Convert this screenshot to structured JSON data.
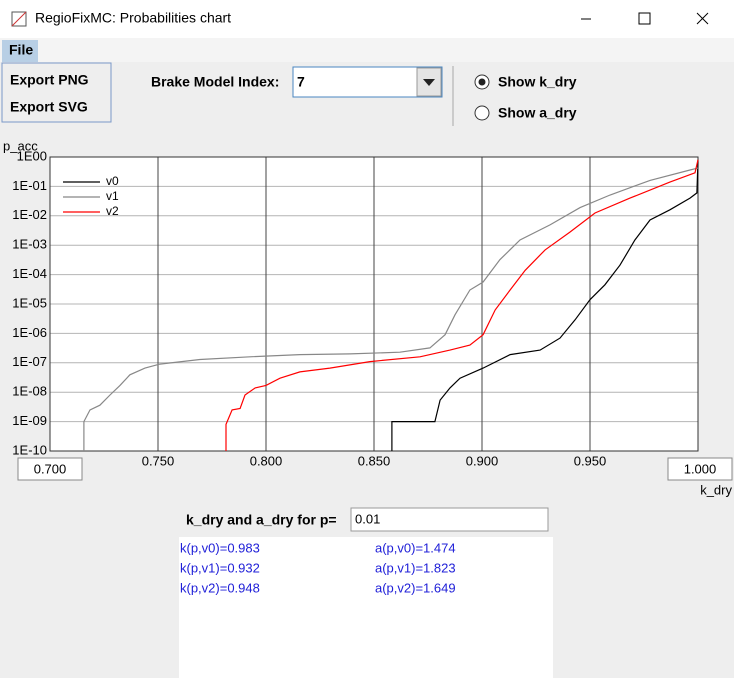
{
  "window": {
    "title": "RegioFixMC: Probabilities chart"
  },
  "menu": {
    "file": "File",
    "items": [
      "Export PNG",
      "Export SVG"
    ]
  },
  "controls": {
    "brake_label": "Brake Model Index:",
    "brake_value": "7",
    "radios": [
      {
        "label": "Show k_dry",
        "selected": true
      },
      {
        "label": "Show a_dry",
        "selected": false
      }
    ]
  },
  "chart_data": {
    "type": "line",
    "ylabel": "p_acc",
    "xlabel": "k_dry",
    "ylog": true,
    "grid": true,
    "legend": "upper left",
    "xlim": [
      0.7,
      1.0
    ],
    "xticks": [
      {
        "value": 0.7,
        "label": "0.700"
      },
      {
        "value": 0.75,
        "label": "0.750"
      },
      {
        "value": 0.8,
        "label": "0.800"
      },
      {
        "value": 0.85,
        "label": "0.850"
      },
      {
        "value": 0.9,
        "label": "0.900"
      },
      {
        "value": 0.95,
        "label": "0.950"
      },
      {
        "value": 1.0,
        "label": "1.000"
      }
    ],
    "ylim": [
      1e-10,
      1
    ],
    "yticks": [
      {
        "value": 1,
        "label": "1E00"
      },
      {
        "value": 0.1,
        "label": "1E-01"
      },
      {
        "value": 0.01,
        "label": "1E-02"
      },
      {
        "value": 0.001,
        "label": "1E-03"
      },
      {
        "value": 0.0001,
        "label": "1E-04"
      },
      {
        "value": 1e-05,
        "label": "1E-05"
      },
      {
        "value": 1e-06,
        "label": "1E-06"
      },
      {
        "value": 1e-07,
        "label": "1E-07"
      },
      {
        "value": 1e-08,
        "label": "1E-08"
      },
      {
        "value": 1e-09,
        "label": "1E-09"
      },
      {
        "value": 1e-10,
        "label": "1E-10"
      }
    ],
    "series": [
      {
        "name": "v0",
        "color": "#000000",
        "x": [
          0.8583,
          0.8583,
          0.8782,
          0.8806,
          0.8852,
          0.8898,
          0.9005,
          0.913,
          0.9269,
          0.9361,
          0.9431,
          0.95,
          0.9569,
          0.9639,
          0.9708,
          0.9778,
          0.987,
          0.9963,
          0.9995,
          1.0
        ],
        "values": [
          1e-10,
          1e-09,
          1e-09,
          5.4e-09,
          1.4e-08,
          3e-08,
          6.6e-08,
          1.9e-07,
          2.7e-07,
          6.9e-07,
          2.9e-06,
          1.4e-05,
          4.5e-05,
          0.00021,
          0.0015,
          0.0072,
          0.016,
          0.04,
          0.06,
          0.8
        ]
      },
      {
        "name": "v1",
        "color": "#888888",
        "x": [
          0.7157,
          0.7157,
          0.7185,
          0.7231,
          0.7278,
          0.7324,
          0.737,
          0.744,
          0.7509,
          0.7694,
          0.7926,
          0.8157,
          0.8389,
          0.862,
          0.8759,
          0.8829,
          0.8875,
          0.8944,
          0.9005,
          0.9083,
          0.9176,
          0.9315,
          0.9454,
          0.9593,
          0.9778,
          0.9963,
          1.0
        ],
        "values": [
          1e-10,
          1e-09,
          2.5e-09,
          3.6e-09,
          8e-09,
          1.7e-08,
          3.9e-08,
          6.6e-08,
          9e-08,
          1.3e-07,
          1.6e-07,
          1.9e-07,
          2e-07,
          2.3e-07,
          3.2e-07,
          9e-07,
          4.3e-06,
          3e-05,
          5.6e-05,
          0.00032,
          0.0015,
          0.0049,
          0.019,
          0.051,
          0.16,
          0.36,
          0.42
        ]
      },
      {
        "name": "v2",
        "color": "#ff0000",
        "x": [
          0.7815,
          0.7815,
          0.7843,
          0.788,
          0.7903,
          0.795,
          0.8,
          0.8065,
          0.8157,
          0.8296,
          0.8481,
          0.8713,
          0.8852,
          0.8944,
          0.9005,
          0.9061,
          0.913,
          0.92,
          0.9292,
          0.9407,
          0.9523,
          0.9685,
          0.987,
          0.9986,
          1.0
        ],
        "values": [
          1e-10,
          8e-10,
          2.5e-09,
          2.8e-09,
          8e-09,
          1.4e-08,
          1.7e-08,
          3e-08,
          4.9e-08,
          6.6e-08,
          1.1e-07,
          1.6e-07,
          2.7e-07,
          4e-07,
          9e-07,
          6.3e-06,
          3e-05,
          0.00014,
          0.00069,
          0.0028,
          0.0125,
          0.04,
          0.14,
          0.29,
          0.8
        ]
      }
    ]
  },
  "query": {
    "label": "k_dry and a_dry for p=",
    "p": "0.01"
  },
  "results": {
    "k": [
      "k(p,v0)=0.983",
      "k(p,v1)=0.932",
      "k(p,v2)=0.948"
    ],
    "a": [
      "a(p,v0)=1.474",
      "a(p,v1)=1.823",
      "a(p,v2)=1.649"
    ]
  }
}
